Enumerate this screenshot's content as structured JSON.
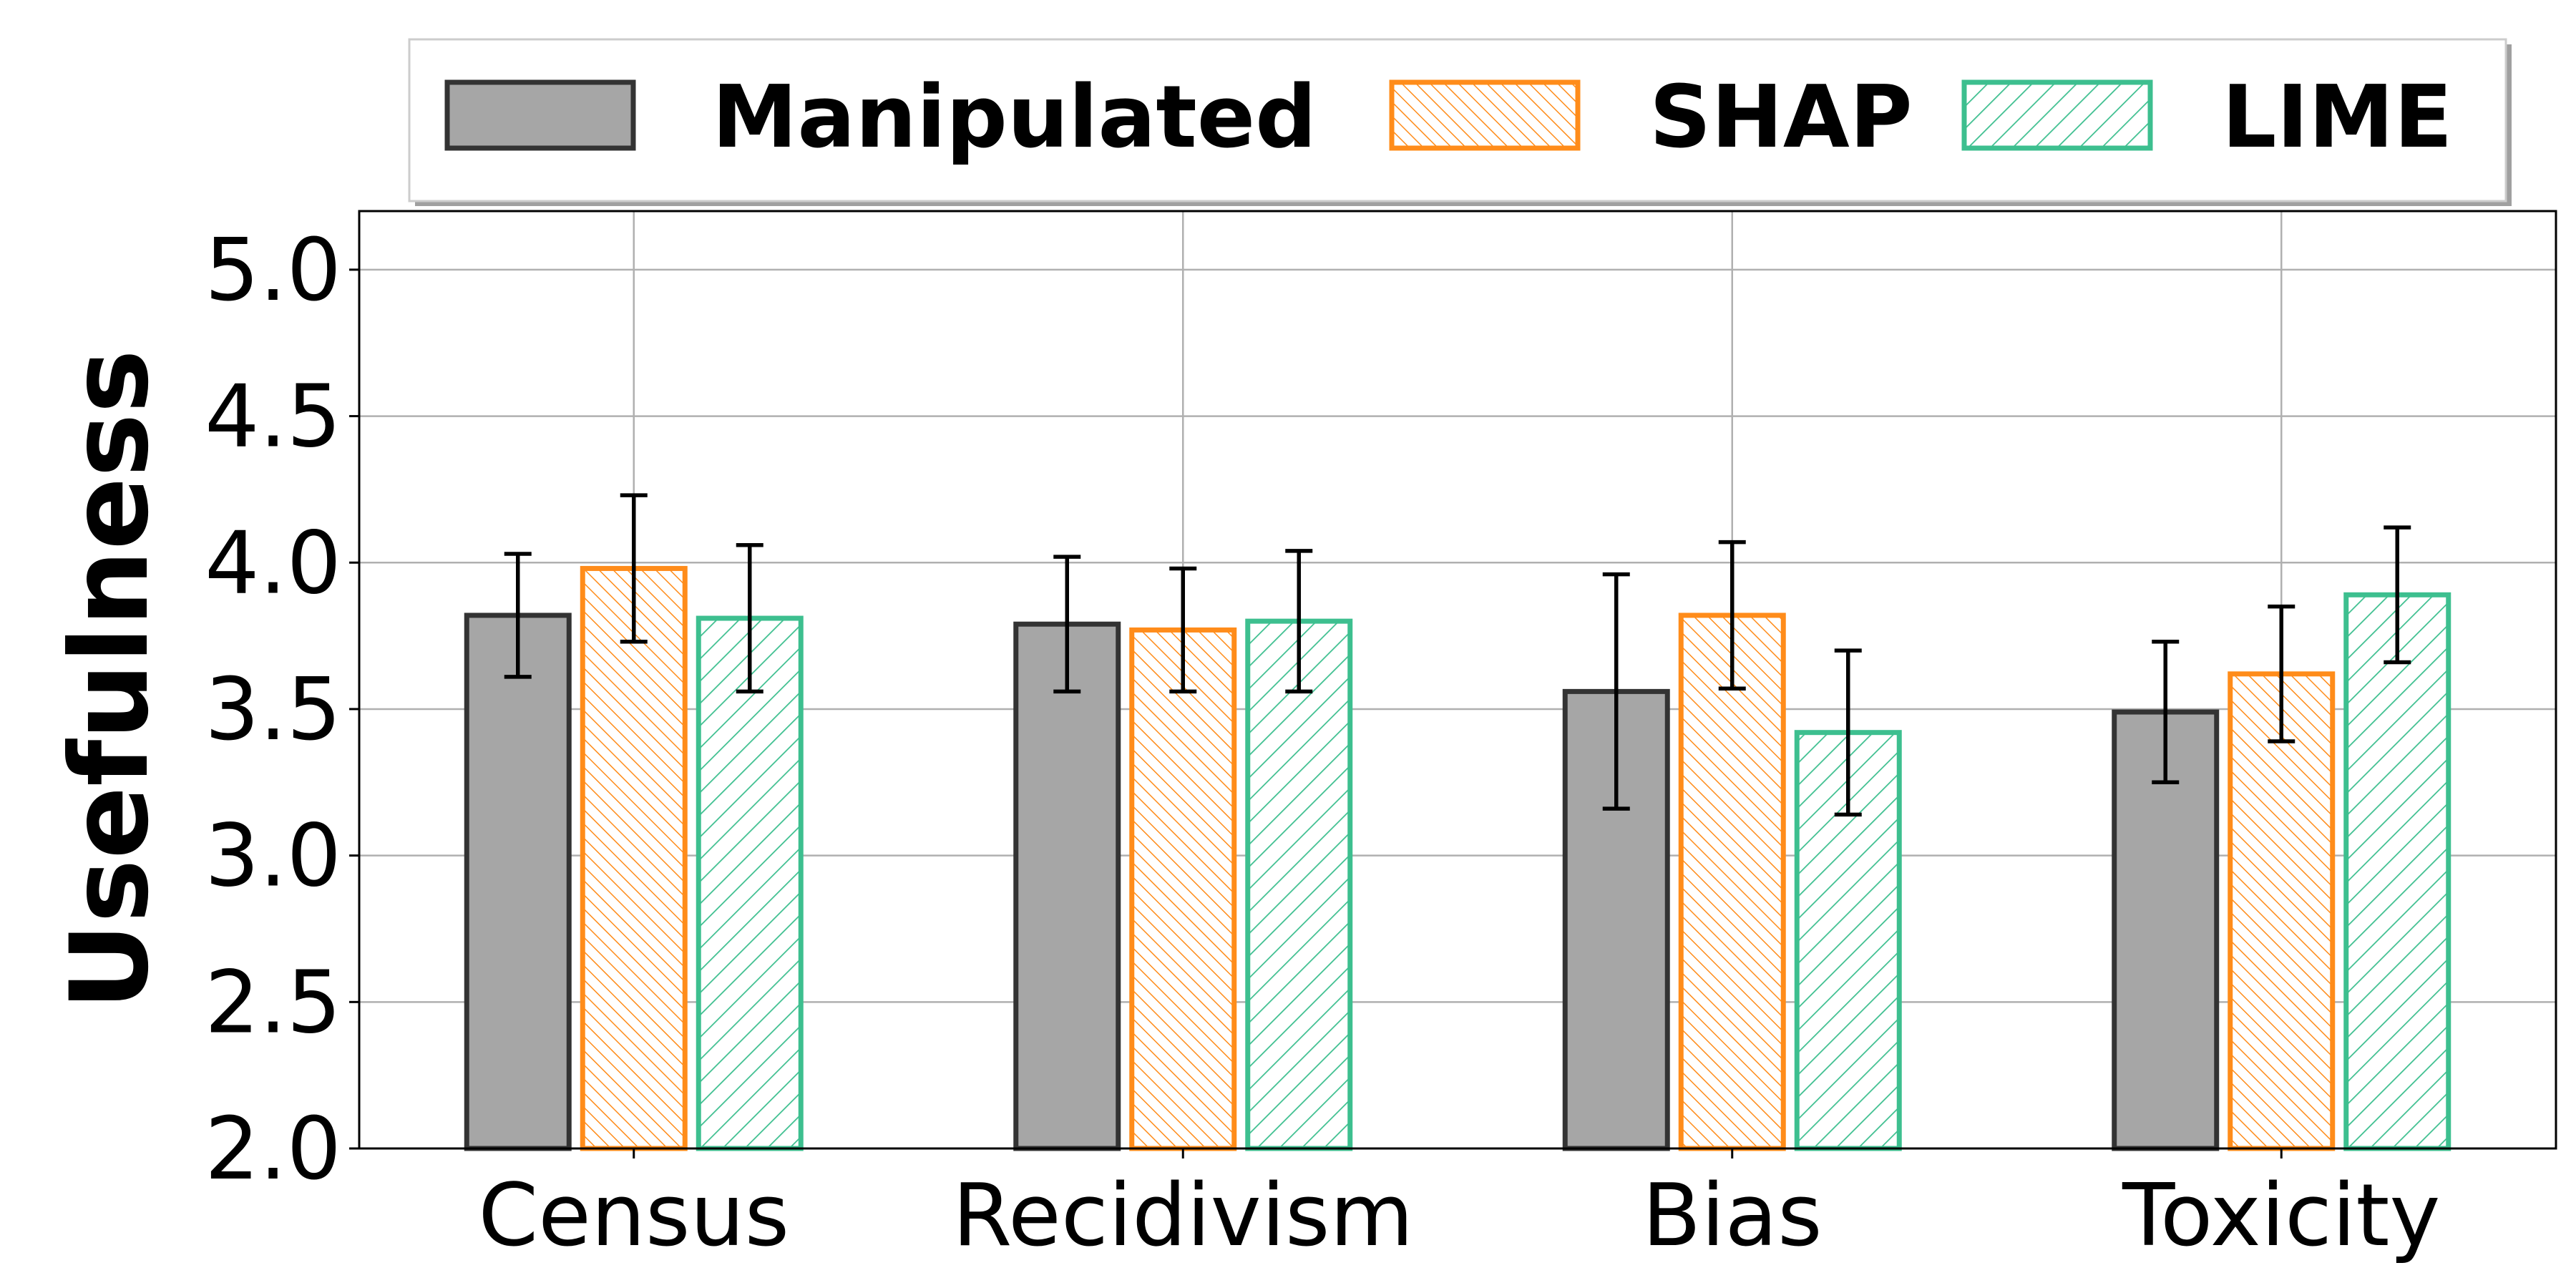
{
  "chart_data": {
    "type": "bar",
    "ylabel": "Usefulness",
    "ylim": [
      2.0,
      5.2
    ],
    "yticks": [
      "2.0",
      "2.5",
      "3.0",
      "3.5",
      "4.0",
      "4.5",
      "5.0"
    ],
    "grid": true,
    "legend_position": "top",
    "categories": [
      "Census",
      "Recidivism",
      "Bias",
      "Toxicity"
    ],
    "series": [
      {
        "name": "Manipulated",
        "values": [
          3.82,
          3.79,
          3.56,
          3.49
        ],
        "err_low": [
          3.61,
          3.56,
          3.16,
          3.25
        ],
        "err_high": [
          4.03,
          4.02,
          3.96,
          3.73
        ]
      },
      {
        "name": "SHAP",
        "values": [
          3.98,
          3.77,
          3.82,
          3.62
        ],
        "err_low": [
          3.73,
          3.56,
          3.57,
          3.39
        ],
        "err_high": [
          4.23,
          3.98,
          4.07,
          3.85
        ]
      },
      {
        "name": "LIME",
        "values": [
          3.81,
          3.8,
          3.42,
          3.89
        ],
        "err_low": [
          3.56,
          3.56,
          3.14,
          3.66
        ],
        "err_high": [
          4.06,
          4.04,
          3.7,
          4.12
        ]
      }
    ],
    "colors": {
      "Manipulated": {
        "fill": "#a6a6a6",
        "stroke": "#333333"
      },
      "SHAP": {
        "fill": "#ffffff",
        "stroke": "#ff8c1a"
      },
      "LIME": {
        "fill": "#ffffff",
        "stroke": "#3dbf8f"
      }
    }
  }
}
